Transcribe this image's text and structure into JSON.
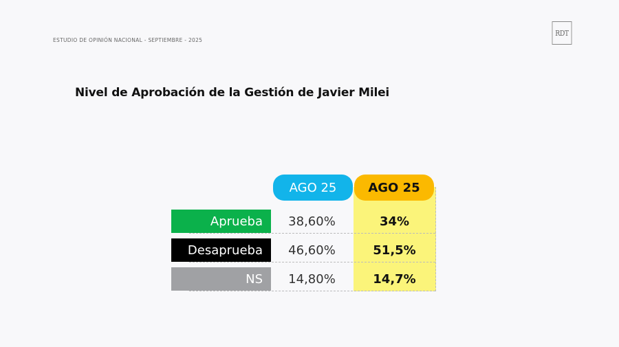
{
  "header": {
    "study": "ESTUDIO DE OPINIÓN NACIONAL - SEPTIEMBRE - 2025",
    "logo": "RDT"
  },
  "title": "Nivel de Aprobación de la Gestión de Javier Milei",
  "table": {
    "columns": [
      "AGO 25",
      "AGO 25"
    ],
    "rows": [
      {
        "label": "Aprueba",
        "color": "#0bb14b",
        "values": [
          "38,60%",
          "34%"
        ]
      },
      {
        "label": "Desaprueba",
        "color": "#000000",
        "values": [
          "46,60%",
          "51,5%"
        ]
      },
      {
        "label": "NS",
        "color": "#a0a1a4",
        "values": [
          "14,80%",
          "14,7%"
        ]
      }
    ]
  },
  "colors": {
    "col1_header": "#12b4ea",
    "col2_header": "#fbb900",
    "highlight": "#fbf47a"
  }
}
